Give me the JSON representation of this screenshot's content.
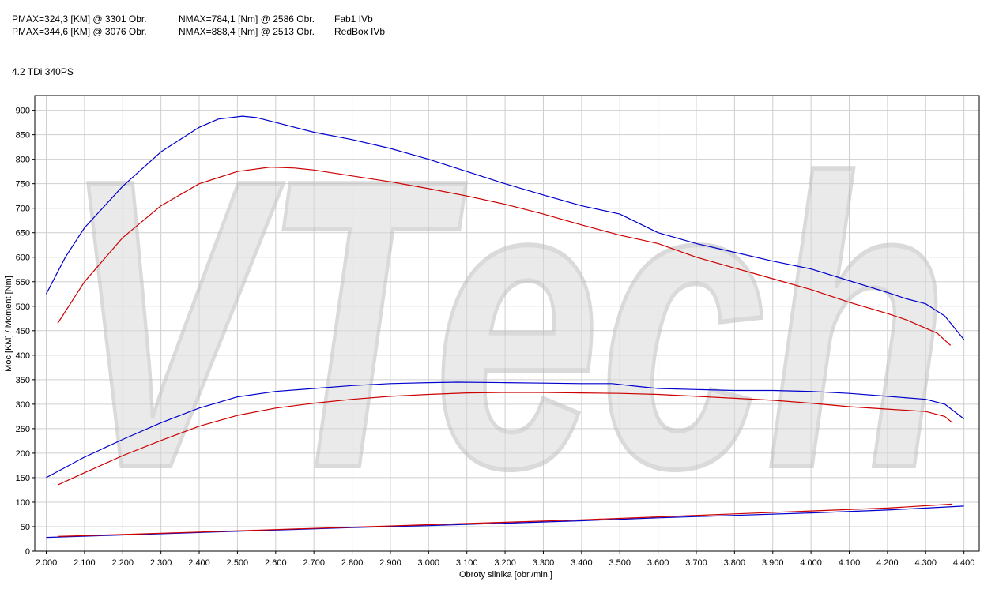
{
  "header": {
    "rows": [
      {
        "pmax": "PMAX=324,3 [KM] @ 3301 Obr.",
        "nmax": "NMAX=784,1 [Nm] @ 2586 Obr.",
        "name": "Fab1 IVb"
      },
      {
        "pmax": "PMAX=344,6 [KM] @ 3076 Obr.",
        "nmax": "NMAX=888,4 [Nm] @ 2513 Obr.",
        "name": "RedBox IVb"
      }
    ],
    "subtitle": "4.2 TDi 340PS"
  },
  "chart_data": {
    "type": "line",
    "title": "",
    "xlabel": "Obroty silnika [obr./min.]",
    "ylabel": "Moc [KM] / Moment [Nm]",
    "xlim": [
      1970,
      4440
    ],
    "ylim": [
      0,
      930
    ],
    "grid": true,
    "x_ticks": [
      "2.000",
      "2.100",
      "2.200",
      "2.300",
      "2.400",
      "2.500",
      "2.600",
      "2.700",
      "2.800",
      "2.900",
      "3.000",
      "3.100",
      "3.200",
      "3.300",
      "3.400",
      "3.500",
      "3.600",
      "3.700",
      "3.800",
      "3.900",
      "4.000",
      "4.100",
      "4.200",
      "4.300",
      "4.400"
    ],
    "x_tick_values": [
      2000,
      2100,
      2200,
      2300,
      2400,
      2500,
      2600,
      2700,
      2800,
      2900,
      3000,
      3100,
      3200,
      3300,
      3400,
      3500,
      3600,
      3700,
      3800,
      3900,
      4000,
      4100,
      4200,
      4300,
      4400
    ],
    "y_ticks": [
      0,
      50,
      100,
      150,
      200,
      250,
      300,
      350,
      400,
      450,
      500,
      550,
      600,
      650,
      700,
      750,
      800,
      850,
      900
    ],
    "watermark": "VTech",
    "series": [
      {
        "color": "#0000cc",
        "points": [
          [
            2000,
            525
          ],
          [
            2050,
            600
          ],
          [
            2100,
            660
          ],
          [
            2200,
            745
          ],
          [
            2300,
            815
          ],
          [
            2400,
            865
          ],
          [
            2450,
            882
          ],
          [
            2513,
            888
          ],
          [
            2550,
            885
          ],
          [
            2600,
            875
          ],
          [
            2700,
            855
          ],
          [
            2800,
            840
          ],
          [
            2900,
            822
          ],
          [
            3000,
            800
          ],
          [
            3100,
            775
          ],
          [
            3200,
            750
          ],
          [
            3300,
            727
          ],
          [
            3400,
            705
          ],
          [
            3500,
            688
          ],
          [
            3600,
            650
          ],
          [
            3700,
            628
          ],
          [
            3800,
            610
          ],
          [
            3900,
            592
          ],
          [
            4000,
            576
          ],
          [
            4100,
            552
          ],
          [
            4200,
            528
          ],
          [
            4250,
            515
          ],
          [
            4300,
            505
          ],
          [
            4350,
            480
          ],
          [
            4400,
            432
          ]
        ]
      },
      {
        "color": "#cc0000",
        "points": [
          [
            2030,
            465
          ],
          [
            2100,
            550
          ],
          [
            2200,
            640
          ],
          [
            2300,
            705
          ],
          [
            2400,
            750
          ],
          [
            2500,
            775
          ],
          [
            2586,
            784
          ],
          [
            2650,
            782
          ],
          [
            2700,
            778
          ],
          [
            2800,
            766
          ],
          [
            2900,
            754
          ],
          [
            3000,
            740
          ],
          [
            3100,
            725
          ],
          [
            3200,
            708
          ],
          [
            3300,
            688
          ],
          [
            3400,
            666
          ],
          [
            3500,
            645
          ],
          [
            3600,
            628
          ],
          [
            3700,
            600
          ],
          [
            3800,
            578
          ],
          [
            3900,
            556
          ],
          [
            4000,
            534
          ],
          [
            4100,
            508
          ],
          [
            4200,
            485
          ],
          [
            4250,
            472
          ],
          [
            4300,
            455
          ],
          [
            4330,
            445
          ],
          [
            4365,
            420
          ]
        ]
      },
      {
        "color": "#0000cc",
        "points": [
          [
            2000,
            150
          ],
          [
            2100,
            192
          ],
          [
            2200,
            228
          ],
          [
            2300,
            262
          ],
          [
            2400,
            292
          ],
          [
            2500,
            315
          ],
          [
            2600,
            326
          ],
          [
            2700,
            332
          ],
          [
            2800,
            338
          ],
          [
            2900,
            342
          ],
          [
            3000,
            344
          ],
          [
            3076,
            345
          ],
          [
            3200,
            344
          ],
          [
            3300,
            343
          ],
          [
            3400,
            342
          ],
          [
            3480,
            342
          ],
          [
            3550,
            336
          ],
          [
            3600,
            332
          ],
          [
            3700,
            330
          ],
          [
            3800,
            328
          ],
          [
            3900,
            328
          ],
          [
            4000,
            326
          ],
          [
            4100,
            322
          ],
          [
            4200,
            316
          ],
          [
            4300,
            310
          ],
          [
            4350,
            300
          ],
          [
            4400,
            270
          ]
        ]
      },
      {
        "color": "#cc0000",
        "points": [
          [
            2030,
            135
          ],
          [
            2100,
            160
          ],
          [
            2200,
            195
          ],
          [
            2300,
            226
          ],
          [
            2400,
            255
          ],
          [
            2500,
            277
          ],
          [
            2600,
            292
          ],
          [
            2700,
            302
          ],
          [
            2800,
            310
          ],
          [
            2900,
            316
          ],
          [
            3000,
            320
          ],
          [
            3100,
            323
          ],
          [
            3200,
            324
          ],
          [
            3301,
            324
          ],
          [
            3400,
            323
          ],
          [
            3500,
            322
          ],
          [
            3600,
            320
          ],
          [
            3700,
            316
          ],
          [
            3800,
            312
          ],
          [
            3900,
            308
          ],
          [
            4000,
            302
          ],
          [
            4100,
            295
          ],
          [
            4200,
            290
          ],
          [
            4300,
            285
          ],
          [
            4350,
            275
          ],
          [
            4370,
            262
          ]
        ]
      },
      {
        "color": "#0000cc",
        "points": [
          [
            2000,
            28
          ],
          [
            2200,
            33
          ],
          [
            2400,
            38
          ],
          [
            2600,
            43
          ],
          [
            2800,
            48
          ],
          [
            3000,
            52
          ],
          [
            3200,
            57
          ],
          [
            3400,
            62
          ],
          [
            3600,
            68
          ],
          [
            3800,
            73
          ],
          [
            4000,
            78
          ],
          [
            4200,
            84
          ],
          [
            4400,
            92
          ]
        ]
      },
      {
        "color": "#cc0000",
        "points": [
          [
            2030,
            30
          ],
          [
            2200,
            34
          ],
          [
            2400,
            39
          ],
          [
            2600,
            44
          ],
          [
            2800,
            49
          ],
          [
            3000,
            54
          ],
          [
            3200,
            59
          ],
          [
            3400,
            64
          ],
          [
            3600,
            70
          ],
          [
            3800,
            76
          ],
          [
            4000,
            82
          ],
          [
            4200,
            88
          ],
          [
            4370,
            96
          ]
        ]
      }
    ]
  }
}
